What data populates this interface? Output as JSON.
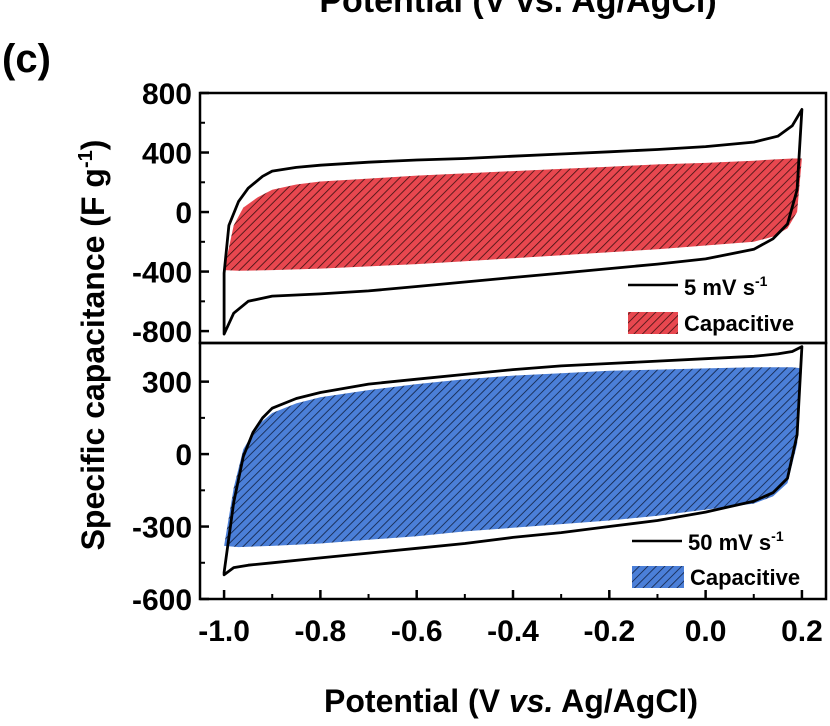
{
  "top_cropped_text": "Potential (V vs. Ag/AgCl)",
  "panel_label": "(c)",
  "ylabel": "Specific capacitance (F g",
  "ylabel_sup": "-1",
  "ylabel_close": ")",
  "xlabel": {
    "pre": "Potential (V ",
    "italic": "vs.",
    "post": " Ag/AgCl)"
  },
  "chart_data": [
    {
      "type": "area",
      "panel": "top",
      "xlim": [
        -1.05,
        0.25
      ],
      "ylim": [
        -880,
        800
      ],
      "yticks": [
        800,
        400,
        0,
        -400,
        -800
      ],
      "ytick_labels": [
        "800",
        "400",
        "0",
        "-400",
        "-800"
      ],
      "legend_position": "bottom-right",
      "series": [
        {
          "name": "5 mV s",
          "name_sup": "-1",
          "style": "line",
          "color": "#000000",
          "cv_upper": {
            "x": [
              -1.0,
              -0.99,
              -0.97,
              -0.95,
              -0.92,
              -0.9,
              -0.85,
              -0.8,
              -0.7,
              -0.6,
              -0.5,
              -0.4,
              -0.3,
              -0.2,
              -0.1,
              0.0,
              0.1,
              0.15,
              0.18,
              0.2
            ],
            "y": [
              -410,
              -90,
              70,
              160,
              240,
              275,
              300,
              315,
              335,
              350,
              360,
              375,
              390,
              405,
              420,
              440,
              470,
              510,
              580,
              690
            ]
          },
          "cv_lower": {
            "x": [
              0.2,
              0.19,
              0.17,
              0.14,
              0.1,
              0.0,
              -0.1,
              -0.2,
              -0.3,
              -0.4,
              -0.5,
              -0.6,
              -0.7,
              -0.8,
              -0.9,
              -0.95,
              -0.98,
              -1.0
            ],
            "y": [
              690,
              150,
              -80,
              -180,
              -250,
              -315,
              -350,
              -380,
              -410,
              -440,
              -470,
              -500,
              -530,
              -550,
              -565,
              -600,
              -680,
              -820
            ]
          }
        },
        {
          "name": "Capacitive",
          "style": "hatched-fill",
          "color": "#e8474f",
          "upper": {
            "x": [
              -1.0,
              -0.98,
              -0.96,
              -0.93,
              -0.9,
              -0.85,
              -0.8,
              -0.7,
              -0.6,
              -0.5,
              -0.4,
              -0.3,
              -0.2,
              -0.1,
              0.0,
              0.1,
              0.15,
              0.18,
              0.2
            ],
            "y": [
              -390,
              -90,
              30,
              100,
              150,
              185,
              205,
              225,
              245,
              260,
              275,
              290,
              305,
              320,
              330,
              345,
              355,
              360,
              360
            ]
          },
          "lower": {
            "x": [
              0.2,
              0.19,
              0.17,
              0.14,
              0.1,
              0.0,
              -0.1,
              -0.2,
              -0.3,
              -0.4,
              -0.5,
              -0.6,
              -0.7,
              -0.8,
              -0.9,
              -0.97,
              -1.0
            ],
            "y": [
              360,
              0,
              -110,
              -165,
              -200,
              -225,
              -250,
              -270,
              -290,
              -310,
              -330,
              -350,
              -365,
              -380,
              -390,
              -395,
              -390
            ]
          }
        }
      ]
    },
    {
      "type": "area",
      "panel": "bottom",
      "xlim": [
        -1.05,
        0.25
      ],
      "ylim": [
        -600,
        460
      ],
      "yticks": [
        300,
        0,
        -300,
        -600
      ],
      "ytick_labels": [
        "300",
        "0",
        "-300",
        "-600"
      ],
      "xticks": [
        -1.0,
        -0.8,
        -0.6,
        -0.4,
        -0.2,
        0.0,
        0.2
      ],
      "xtick_labels": [
        "-1.0",
        "-0.8",
        "-0.6",
        "-0.4",
        "-0.2",
        "0.0",
        "0.2"
      ],
      "legend_position": "bottom-right",
      "series": [
        {
          "name": "50 mV s",
          "name_sup": "-1",
          "style": "line",
          "color": "#000000",
          "cv_upper": {
            "x": [
              -1.0,
              -0.98,
              -0.96,
              -0.94,
              -0.92,
              -0.9,
              -0.85,
              -0.8,
              -0.7,
              -0.6,
              -0.5,
              -0.4,
              -0.3,
              -0.2,
              -0.1,
              0.0,
              0.1,
              0.15,
              0.18,
              0.2
            ],
            "y": [
              -490,
              -200,
              -10,
              90,
              150,
              190,
              230,
              255,
              290,
              310,
              330,
              350,
              365,
              375,
              385,
              395,
              405,
              415,
              425,
              445
            ]
          },
          "cv_lower": {
            "x": [
              0.2,
              0.19,
              0.17,
              0.14,
              0.1,
              0.0,
              -0.1,
              -0.2,
              -0.3,
              -0.4,
              -0.5,
              -0.6,
              -0.7,
              -0.8,
              -0.9,
              -0.95,
              -0.98,
              -1.0
            ],
            "y": [
              445,
              80,
              -100,
              -160,
              -195,
              -240,
              -275,
              -300,
              -325,
              -345,
              -370,
              -390,
              -410,
              -430,
              -450,
              -460,
              -470,
              -500
            ]
          }
        },
        {
          "name": "Capacitive",
          "style": "hatched-fill",
          "color": "#4b7fd8",
          "upper": {
            "x": [
              -1.0,
              -0.98,
              -0.96,
              -0.93,
              -0.9,
              -0.85,
              -0.8,
              -0.7,
              -0.6,
              -0.5,
              -0.4,
              -0.3,
              -0.2,
              -0.1,
              0.0,
              0.1,
              0.15,
              0.18,
              0.2
            ],
            "y": [
              -380,
              -140,
              20,
              120,
              170,
              210,
              235,
              265,
              290,
              310,
              325,
              335,
              345,
              350,
              355,
              360,
              360,
              360,
              355
            ]
          },
          "lower": {
            "x": [
              0.2,
              0.19,
              0.17,
              0.14,
              0.1,
              0.0,
              -0.1,
              -0.2,
              -0.3,
              -0.4,
              -0.5,
              -0.6,
              -0.7,
              -0.8,
              -0.9,
              -0.97,
              -1.0
            ],
            "y": [
              355,
              40,
              -120,
              -175,
              -205,
              -230,
              -255,
              -275,
              -290,
              -305,
              -320,
              -340,
              -355,
              -370,
              -380,
              -385,
              -380
            ]
          }
        }
      ]
    }
  ]
}
